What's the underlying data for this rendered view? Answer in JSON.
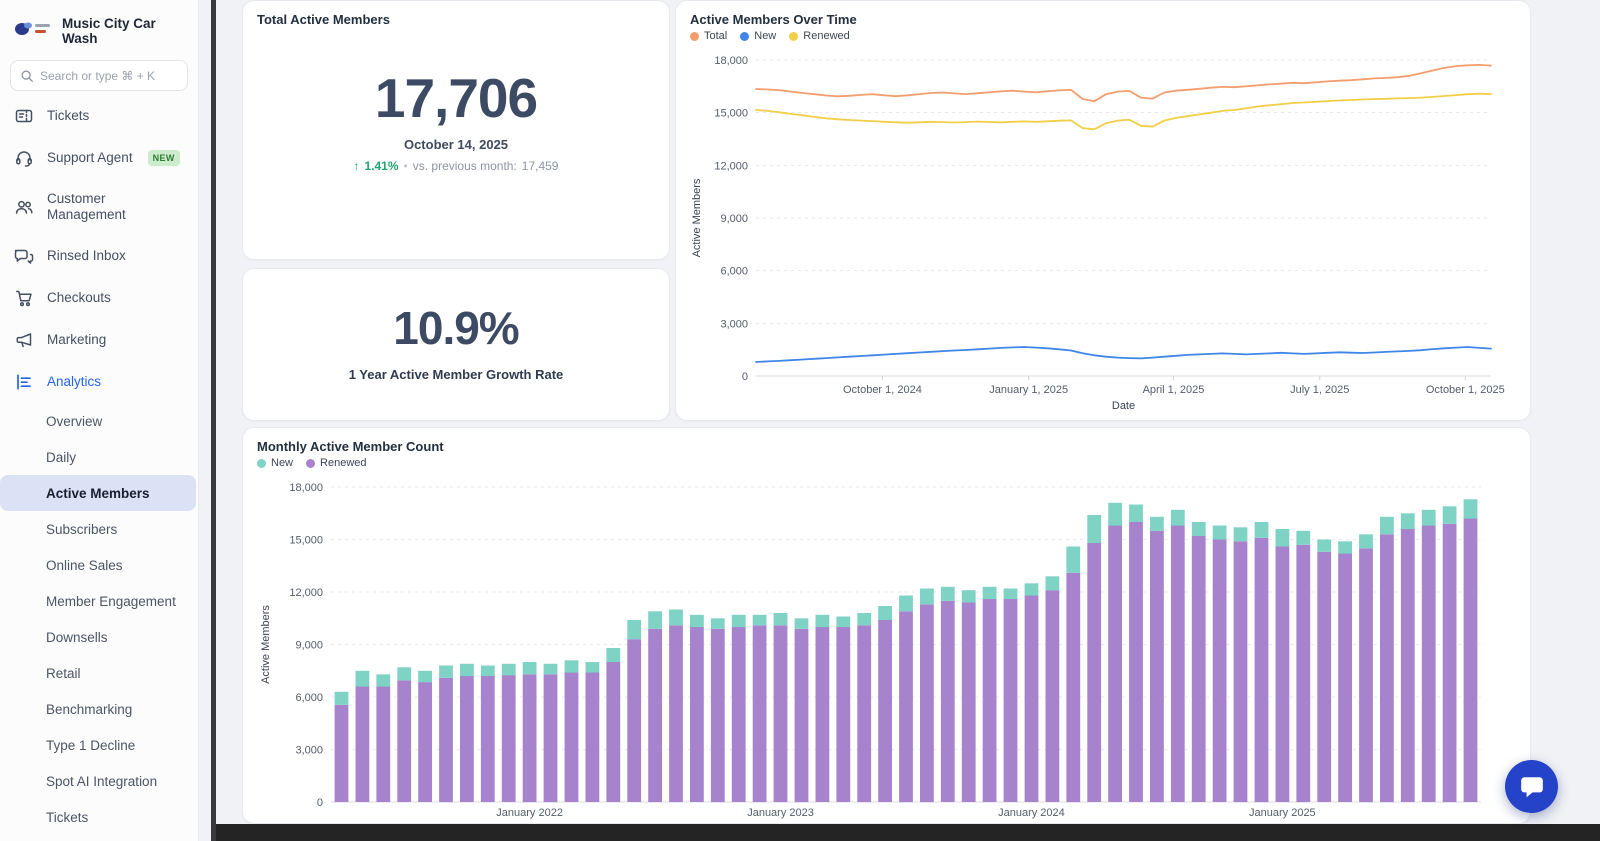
{
  "brand": {
    "name": "Music City Car Wash"
  },
  "search": {
    "placeholder": "Search or type ⌘ + K"
  },
  "sidebar": {
    "items": [
      {
        "label": "Tickets",
        "icon": "ticket-icon"
      },
      {
        "label": "Support Agent",
        "icon": "headset-icon",
        "badge": "NEW"
      },
      {
        "label": "Customer Management",
        "icon": "users-icon",
        "tall": true
      },
      {
        "label": "Rinsed Inbox",
        "icon": "chat-icon"
      },
      {
        "label": "Checkouts",
        "icon": "cart-icon"
      },
      {
        "label": "Marketing",
        "icon": "megaphone-icon"
      },
      {
        "label": "Analytics",
        "icon": "analytics-icon",
        "active": true
      }
    ],
    "analytics_subitems": [
      {
        "label": "Overview"
      },
      {
        "label": "Daily"
      },
      {
        "label": "Active Members",
        "selected": true
      },
      {
        "label": "Subscribers"
      },
      {
        "label": "Online Sales"
      },
      {
        "label": "Member Engagement"
      },
      {
        "label": "Downsells"
      },
      {
        "label": "Retail"
      },
      {
        "label": "Benchmarking"
      },
      {
        "label": "Type 1 Decline"
      },
      {
        "label": "Spot AI Integration"
      },
      {
        "label": "Tickets"
      }
    ]
  },
  "cards": {
    "total_active": {
      "title": "Total Active Members",
      "value": "17,706",
      "date": "October 14, 2025",
      "arrow": "↑",
      "pct": "1.41%",
      "sep": "•",
      "vs_label": "vs. previous month:",
      "vs_value": "17,459"
    },
    "growth_rate": {
      "value": "10.9%",
      "label": "1 Year Active Member Growth Rate"
    }
  },
  "colors": {
    "accent_blue": "#2563eb",
    "selected_pill": "#dbe2f6",
    "growth_green": "#1fa56d",
    "chat_fab": "#2443c9"
  },
  "chart_data": [
    {
      "type": "line",
      "title": "Active Members Over Time",
      "ylabel": "Active Members",
      "xlabel": "Date",
      "ylim": [
        0,
        18000
      ],
      "yticks": [
        0,
        3000,
        6000,
        9000,
        12000,
        15000,
        18000
      ],
      "grid": "dashed-horizontal",
      "legend_position": "top-left",
      "x_range": [
        "2024-07-15",
        "2025-10-14"
      ],
      "x_ticks": [
        {
          "label": "October 1, 2024",
          "t": 0.172
        },
        {
          "label": "January 1, 2025",
          "t": 0.371
        },
        {
          "label": "April 1, 2025",
          "t": 0.568
        },
        {
          "label": "July 1, 2025",
          "t": 0.767
        },
        {
          "label": "October 1, 2025",
          "t": 0.965
        }
      ],
      "series": [
        {
          "name": "Total",
          "color": "#F49E6E",
          "values": [
            16350,
            16320,
            16280,
            16200,
            16120,
            16050,
            15980,
            15930,
            15960,
            16010,
            16050,
            15990,
            15940,
            15990,
            16060,
            16120,
            16150,
            16100,
            16060,
            16110,
            16160,
            16210,
            16250,
            16200,
            16160,
            16220,
            16270,
            16300,
            15780,
            15650,
            16050,
            16200,
            16240,
            15850,
            15800,
            16150,
            16250,
            16300,
            16360,
            16420,
            16470,
            16450,
            16500,
            16560,
            16610,
            16650,
            16700,
            16680,
            16730,
            16780,
            16820,
            16850,
            16900,
            16950,
            16980,
            17020,
            17100,
            17250,
            17400,
            17550,
            17650,
            17700,
            17720,
            17680
          ]
        },
        {
          "name": "New",
          "color": "#3F86E8",
          "values": [
            800,
            830,
            860,
            900,
            940,
            980,
            1020,
            1060,
            1100,
            1140,
            1180,
            1220,
            1260,
            1300,
            1340,
            1380,
            1420,
            1450,
            1480,
            1520,
            1560,
            1600,
            1630,
            1650,
            1620,
            1580,
            1520,
            1450,
            1300,
            1180,
            1100,
            1050,
            1020,
            1000,
            1050,
            1100,
            1150,
            1200,
            1230,
            1260,
            1290,
            1260,
            1230,
            1260,
            1290,
            1320,
            1290,
            1260,
            1290,
            1320,
            1350,
            1330,
            1310,
            1340,
            1370,
            1400,
            1430,
            1470,
            1530,
            1580,
            1620,
            1650,
            1600,
            1560
          ]
        },
        {
          "name": "Renewed",
          "color": "#F3CE49",
          "values": [
            15150,
            15100,
            15020,
            14930,
            14850,
            14760,
            14680,
            14620,
            14580,
            14550,
            14520,
            14480,
            14450,
            14430,
            14450,
            14480,
            14460,
            14440,
            14460,
            14490,
            14470,
            14450,
            14480,
            14500,
            14480,
            14510,
            14540,
            14560,
            14120,
            14050,
            14400,
            14550,
            14600,
            14250,
            14200,
            14550,
            14700,
            14800,
            14900,
            15000,
            15100,
            15150,
            15250,
            15350,
            15420,
            15480,
            15550,
            15580,
            15620,
            15660,
            15700,
            15720,
            15750,
            15770,
            15790,
            15810,
            15830,
            15860,
            15900,
            15950,
            16000,
            16050,
            16080,
            16060
          ]
        }
      ]
    },
    {
      "type": "bar-stacked",
      "title": "Monthly Active Member Count",
      "ylabel": "Active Members",
      "ylim": [
        0,
        18000
      ],
      "yticks": [
        0,
        3000,
        6000,
        9000,
        12000,
        15000,
        18000
      ],
      "grid": "dashed-horizontal",
      "legend_position": "top-left",
      "categories": [
        "April 2021",
        "May 2021",
        "June 2021",
        "July 2021",
        "August 2021",
        "September 2021",
        "October 2021",
        "November 2021",
        "December 2021",
        "January 2022",
        "February 2022",
        "March 2022",
        "April 2022",
        "May 2022",
        "June 2022",
        "July 2022",
        "August 2022",
        "September 2022",
        "October 2022",
        "November 2022",
        "December 2022",
        "January 2023",
        "February 2023",
        "March 2023",
        "April 2023",
        "May 2023",
        "June 2023",
        "July 2023",
        "August 2023",
        "September 2023",
        "October 2023",
        "November 2023",
        "December 2023",
        "January 2024",
        "February 2024",
        "March 2024",
        "April 2024",
        "May 2024",
        "June 2024",
        "July 2024",
        "August 2024",
        "September 2024",
        "October 2024",
        "November 2024",
        "December 2024",
        "January 2025",
        "February 2025",
        "March 2025",
        "April 2025",
        "May 2025",
        "June 2025",
        "July 2025",
        "August 2025",
        "September 2025",
        "October 2025"
      ],
      "x_tick_labels": [
        "January 2022",
        "January 2023",
        "January 2024",
        "January 2025"
      ],
      "stack_order": [
        "Renewed",
        "New"
      ],
      "series": [
        {
          "name": "New",
          "color": "#7FD3C5",
          "values": [
            750,
            900,
            700,
            750,
            650,
            700,
            700,
            600,
            650,
            700,
            600,
            700,
            600,
            800,
            1100,
            1000,
            900,
            700,
            600,
            700,
            600,
            700,
            600,
            700,
            600,
            700,
            800,
            900,
            900,
            800,
            700,
            700,
            600,
            700,
            800,
            1500,
            1600,
            1300,
            1000,
            800,
            900,
            800,
            800,
            800,
            900,
            1000,
            800,
            700,
            700,
            800,
            1000,
            900,
            900,
            1000,
            1100
          ]
        },
        {
          "name": "Renewed",
          "color": "#A783CD",
          "values": [
            5550,
            6600,
            6600,
            6950,
            6850,
            7100,
            7200,
            7200,
            7250,
            7300,
            7300,
            7400,
            7400,
            8000,
            9300,
            9900,
            10100,
            10000,
            9900,
            10000,
            10100,
            10100,
            9900,
            10000,
            10000,
            10100,
            10400,
            10900,
            11300,
            11500,
            11400,
            11600,
            11600,
            11800,
            12100,
            13100,
            14800,
            15800,
            16000,
            15500,
            15800,
            15200,
            15000,
            14900,
            15100,
            14600,
            14700,
            14300,
            14200,
            14500,
            15300,
            15600,
            15800,
            15900,
            16200
          ]
        }
      ]
    }
  ]
}
